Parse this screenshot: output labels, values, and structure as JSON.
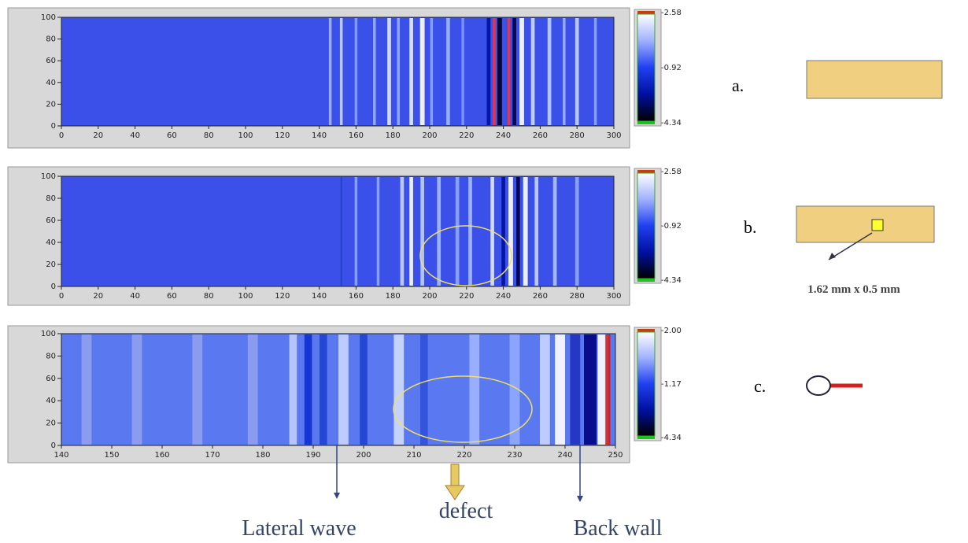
{
  "chart_data": [
    {
      "type": "heatmap",
      "xlim": [
        0,
        300
      ],
      "ylim": [
        0,
        100
      ],
      "xticks": [
        0,
        20,
        40,
        60,
        80,
        100,
        120,
        140,
        160,
        180,
        200,
        220,
        240,
        260,
        280,
        300
      ],
      "yticks": [
        0,
        20,
        40,
        60,
        80,
        100
      ],
      "background": "#3a50e8",
      "colorbar_ticks": [
        "-2.58",
        "-0.92",
        "-4.34"
      ],
      "stripes": [
        {
          "x": 146,
          "w": 1.5,
          "color": "#a0b4ff"
        },
        {
          "x": 152,
          "w": 1.5,
          "color": "#c8d4ff"
        },
        {
          "x": 160,
          "w": 1.5,
          "color": "#8aa0ff"
        },
        {
          "x": 170,
          "w": 1.5,
          "color": "#9ab0ff"
        },
        {
          "x": 178,
          "w": 2,
          "color": "#e0e8ff"
        },
        {
          "x": 183,
          "w": 1.5,
          "color": "#9ab0ff"
        },
        {
          "x": 190,
          "w": 2,
          "color": "#e8eeff"
        },
        {
          "x": 196,
          "w": 2.5,
          "color": "#ffffff"
        },
        {
          "x": 201,
          "w": 1.5,
          "color": "#90a8ff"
        },
        {
          "x": 210,
          "w": 2,
          "color": "#a0b8ff"
        },
        {
          "x": 218,
          "w": 1.5,
          "color": "#8098ff"
        },
        {
          "x": 232,
          "w": 2,
          "color": "#0010a0"
        },
        {
          "x": 235,
          "w": 1.5,
          "color": "#ff3030"
        },
        {
          "x": 238,
          "w": 2.5,
          "color": "#000020"
        },
        {
          "x": 243,
          "w": 1.5,
          "color": "#ff3030"
        },
        {
          "x": 246,
          "w": 2,
          "color": "#000040"
        },
        {
          "x": 250,
          "w": 2.5,
          "color": "#ffffff"
        },
        {
          "x": 256,
          "w": 2,
          "color": "#d0dcff"
        },
        {
          "x": 265,
          "w": 2,
          "color": "#c0d0ff"
        },
        {
          "x": 273,
          "w": 1.5,
          "color": "#a0b4ff"
        },
        {
          "x": 280,
          "w": 2,
          "color": "#c8d4ff"
        },
        {
          "x": 290,
          "w": 1.5,
          "color": "#90a8ff"
        }
      ]
    },
    {
      "type": "heatmap",
      "xlim": [
        0,
        300
      ],
      "ylim": [
        0,
        100
      ],
      "xticks": [
        0,
        20,
        40,
        60,
        80,
        100,
        120,
        140,
        160,
        180,
        200,
        220,
        240,
        260,
        280,
        300
      ],
      "yticks": [
        0,
        20,
        40,
        60,
        80,
        100
      ],
      "background": "#3a50e8",
      "colorbar_ticks": [
        "-2.58",
        "-0.92",
        "-4.34"
      ],
      "stripes": [
        {
          "x": 152,
          "w": 0.8,
          "color": "#2040c0"
        },
        {
          "x": 160,
          "w": 1.5,
          "color": "#90a8ff"
        },
        {
          "x": 172,
          "w": 1.5,
          "color": "#90a8ff"
        },
        {
          "x": 185,
          "w": 2,
          "color": "#c8d4ff"
        },
        {
          "x": 190,
          "w": 2,
          "color": "#ffffff"
        },
        {
          "x": 196,
          "w": 2,
          "color": "#c0d0ff"
        },
        {
          "x": 205,
          "w": 2,
          "color": "#a8bcff"
        },
        {
          "x": 215,
          "w": 2,
          "color": "#90a8ff"
        },
        {
          "x": 222,
          "w": 2,
          "color": "#a8bcff"
        },
        {
          "x": 234,
          "w": 2,
          "color": "#e0e8ff"
        },
        {
          "x": 240,
          "w": 2,
          "color": "#0010a0"
        },
        {
          "x": 244,
          "w": 2.5,
          "color": "#ffffff"
        },
        {
          "x": 248,
          "w": 2,
          "color": "#000040"
        },
        {
          "x": 252,
          "w": 2.5,
          "color": "#ffffff"
        },
        {
          "x": 258,
          "w": 2,
          "color": "#c8d4ff"
        },
        {
          "x": 268,
          "w": 2,
          "color": "#b0c4ff"
        },
        {
          "x": 280,
          "w": 2,
          "color": "#90a8ff"
        }
      ]
    },
    {
      "type": "heatmap",
      "xlim": [
        140,
        250
      ],
      "ylim": [
        0,
        100
      ],
      "xticks": [
        140,
        150,
        160,
        170,
        180,
        190,
        200,
        210,
        220,
        230,
        240,
        250
      ],
      "yticks": [
        0,
        20,
        40,
        60,
        80,
        100
      ],
      "background": "#5a78f0",
      "colorbar_ticks": [
        "-2.00",
        "-1.17",
        "-4.34"
      ],
      "stripes": [
        {
          "x": 145,
          "w": 2,
          "color": "#90a0f0"
        },
        {
          "x": 155,
          "w": 2,
          "color": "#90a0f0"
        },
        {
          "x": 167,
          "w": 2,
          "color": "#90a0f0"
        },
        {
          "x": 178,
          "w": 2,
          "color": "#90a0f0"
        },
        {
          "x": 186,
          "w": 1.5,
          "color": "#c0ccff"
        },
        {
          "x": 189,
          "w": 1.5,
          "color": "#1030d0"
        },
        {
          "x": 192,
          "w": 1.5,
          "color": "#2040d0"
        },
        {
          "x": 196,
          "w": 2,
          "color": "#c8d4ff"
        },
        {
          "x": 200,
          "w": 1.5,
          "color": "#2040d0"
        },
        {
          "x": 207,
          "w": 2,
          "color": "#d0dcff"
        },
        {
          "x": 212,
          "w": 1.5,
          "color": "#3050d8"
        },
        {
          "x": 222,
          "w": 2,
          "color": "#a0b4ff"
        },
        {
          "x": 230,
          "w": 2,
          "color": "#90a8ff"
        },
        {
          "x": 236,
          "w": 2,
          "color": "#c8d4ff"
        },
        {
          "x": 239,
          "w": 2,
          "color": "#ffffff"
        },
        {
          "x": 242,
          "w": 2,
          "color": "#2030c0"
        },
        {
          "x": 245,
          "w": 2.5,
          "color": "#000080"
        },
        {
          "x": 247.5,
          "w": 2,
          "color": "#ffffff"
        },
        {
          "x": 248.5,
          "w": 1,
          "color": "#d02020"
        }
      ]
    }
  ],
  "panel_letters": [
    "a.",
    "b.",
    "c."
  ],
  "defect_size": "1.62 mm x 0.5 mm",
  "annotations": {
    "lateral": "Lateral wave",
    "defect": "defect",
    "backwall": "Back wall"
  }
}
